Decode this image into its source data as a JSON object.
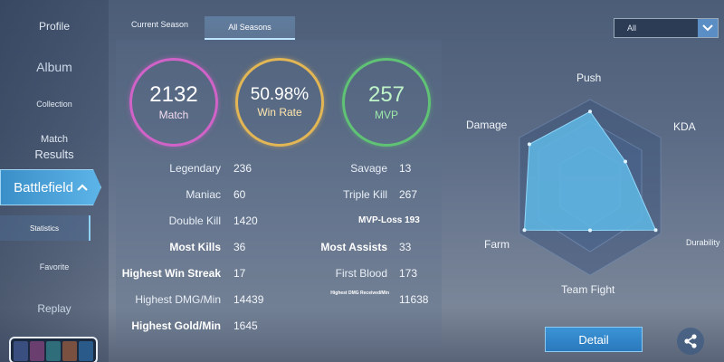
{
  "sidebar": {
    "items": [
      {
        "label": "Profile"
      },
      {
        "label": "Album"
      },
      {
        "label": "Collection"
      },
      {
        "label": "Match"
      },
      {
        "label": "Results"
      },
      {
        "label": "Battlefield"
      },
      {
        "label": "Statistics"
      },
      {
        "label": "Favorite"
      },
      {
        "label": "Replay"
      }
    ]
  },
  "tabs": {
    "current": "Current Season",
    "all": "All Seasons"
  },
  "filter": {
    "value": "All"
  },
  "summary": {
    "match": {
      "value": "2132",
      "label": "Match"
    },
    "winrate": {
      "value": "50.98%",
      "label": "Win Rate"
    },
    "mvp": {
      "value": "257",
      "label": "MVP"
    }
  },
  "stats_left": [
    {
      "label": "Legendary",
      "value": "236"
    },
    {
      "label": "Maniac",
      "value": "60"
    },
    {
      "label": "Double Kill",
      "value": "1420"
    },
    {
      "label": "Most Kills",
      "value": "36"
    },
    {
      "label": "Highest Win Streak",
      "value": "17"
    },
    {
      "label": "Highest DMG/Min",
      "value": "14439"
    },
    {
      "label": "Highest Gold/Min",
      "value": "1645"
    }
  ],
  "stats_right": [
    {
      "label": "Savage",
      "value": "13"
    },
    {
      "label": "Triple Kill",
      "value": "267"
    },
    {
      "label": "MVP-Loss",
      "value": "193"
    },
    {
      "label": "Most Assists",
      "value": "33"
    },
    {
      "label": "First Blood",
      "value": "173"
    },
    {
      "label": "Highest DMG Received/Min",
      "value": "11638"
    }
  ],
  "radar": {
    "labels": {
      "push": "Push",
      "kda": "KDA",
      "durability": "Durability",
      "team_fight": "Team Fight",
      "farm": "Farm",
      "damage": "Damage"
    },
    "fill_color": "#5fb8e6",
    "values": {
      "push": 0.86,
      "kda": 0.5,
      "durability": 0.93,
      "team_fight": 0.5,
      "farm": 0.93,
      "damage": 0.86
    }
  },
  "buttons": {
    "detail": "Detail"
  },
  "icons": {
    "share": "share-icon",
    "dropdown": "chevron-down-icon",
    "expand": "chevron-up-icon"
  }
}
